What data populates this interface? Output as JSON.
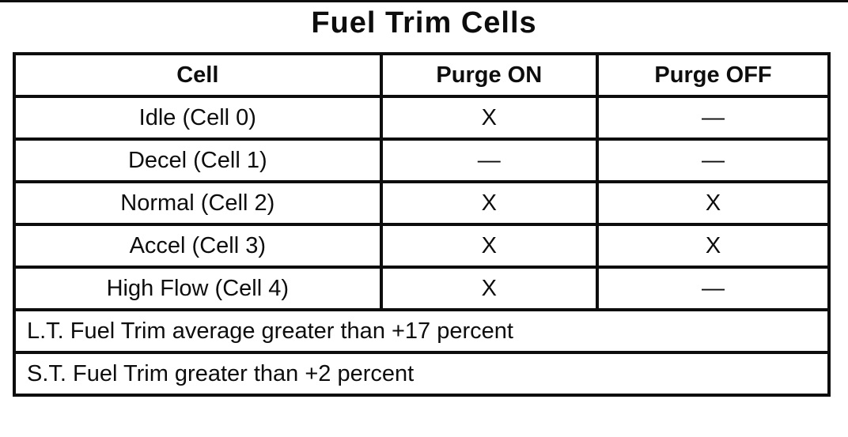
{
  "page": {
    "title": "Fuel Trim Cells"
  },
  "table": {
    "columns": {
      "cell": "Cell",
      "purge_on": "Purge ON",
      "purge_off": "Purge OFF"
    },
    "rows": [
      {
        "cell": "Idle (Cell 0)",
        "purge_on": "X",
        "purge_off": "—"
      },
      {
        "cell": "Decel (Cell 1)",
        "purge_on": "—",
        "purge_off": "—"
      },
      {
        "cell": "Normal (Cell 2)",
        "purge_on": "X",
        "purge_off": "X"
      },
      {
        "cell": "Accel (Cell 3)",
        "purge_on": "X",
        "purge_off": "X"
      },
      {
        "cell": "High Flow (Cell 4)",
        "purge_on": "X",
        "purge_off": "—"
      }
    ],
    "footnotes": [
      "L.T. Fuel Trim average greater than +17 percent",
      "S.T. Fuel Trim greater than +2 percent"
    ]
  },
  "colors": {
    "ink": "#0d0d0d",
    "paper": "#ffffff"
  }
}
